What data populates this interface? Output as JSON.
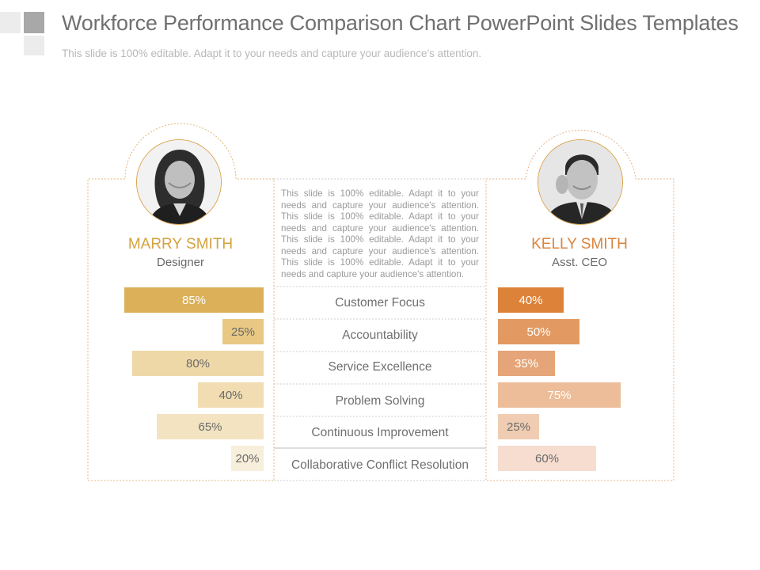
{
  "header": {
    "title": "Workforce Performance Comparison Chart PowerPoint Slides Templates",
    "subtitle": "This slide is 100% editable. Adapt it to your needs and capture your audience's attention."
  },
  "center": {
    "blurb": "This slide is 100% editable. Adapt it to your needs and capture your audience's attention. This slide is 100% editable. Adapt it to your needs and capture your audience's attention. This slide is 100% editable. Adapt it to your needs and capture your audience's attention. This slide is 100% editable. Adapt it to your needs and capture your audience's attention."
  },
  "people": {
    "left": {
      "name": "MARRY SMITH",
      "role": "Designer",
      "color": "#d4a23e"
    },
    "right": {
      "name": "KELLY SMITH",
      "role": "Asst. CEO",
      "color": "#d9843f"
    }
  },
  "chart_data": {
    "type": "bar",
    "categories": [
      "Customer Focus",
      "Accountability",
      "Service Excellence",
      "Problem Solving",
      "Continuous Improvement",
      "Collaborative Conflict Resolution"
    ],
    "unit": "%",
    "series": [
      {
        "name": "MARRY SMITH",
        "values": [
          85,
          25,
          80,
          40,
          65,
          20
        ],
        "colors": [
          "#dbb058",
          "#e8c882",
          "#efd8a8",
          "#f1ddb1",
          "#f3e3c1",
          "#f7eedb"
        ],
        "label_colors": [
          "#ffffff",
          "#6a6a6a",
          "#6a6a6a",
          "#6a6a6a",
          "#6a6a6a",
          "#6a6a6a"
        ]
      },
      {
        "name": "KELLY SMITH",
        "values": [
          40,
          50,
          35,
          75,
          25,
          60
        ],
        "colors": [
          "#dc8339",
          "#e29a62",
          "#e6a578",
          "#ecbd98",
          "#f0cdb2",
          "#f6ddd0"
        ],
        "label_colors": [
          "#ffffff",
          "#ffffff",
          "#ffffff",
          "#ffffff",
          "#6a6a6a",
          "#6a6a6a"
        ]
      }
    ]
  }
}
